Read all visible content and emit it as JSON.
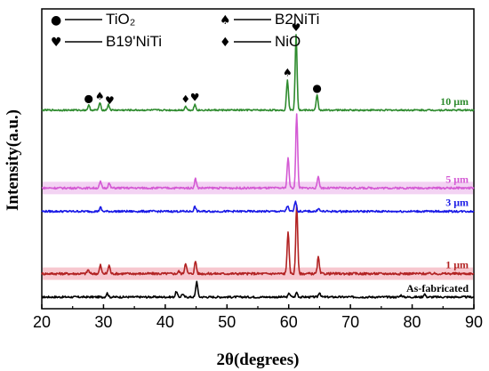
{
  "chart_data": {
    "type": "line",
    "xlabel": "2θ(degrees)",
    "ylabel": "Intensity(a.u.)",
    "xlim": [
      20,
      90
    ],
    "xticks": [
      20,
      30,
      40,
      50,
      60,
      70,
      80,
      90
    ],
    "y_ticks_shown": false,
    "grid": false,
    "legend": {
      "placement": "top-left",
      "entries": [
        {
          "marker": "●",
          "label": "TiO₂"
        },
        {
          "marker": "♠",
          "label": "B2NiTi"
        },
        {
          "marker": "♥",
          "label": "B19'NiTi"
        },
        {
          "marker": "♦",
          "label": "NiO"
        }
      ]
    },
    "series": [
      {
        "name": "As-fabricated",
        "color": "#000000",
        "baseline": 0.0,
        "noise": 0.25,
        "peaks": [
          [
            30.6,
            0.5
          ],
          [
            41.8,
            0.7
          ],
          [
            42.8,
            0.4
          ],
          [
            45.1,
            2.0
          ],
          [
            60.1,
            0.5
          ],
          [
            61.3,
            0.6
          ],
          [
            65.0,
            0.6
          ],
          [
            78.2,
            0.25
          ],
          [
            82.0,
            0.4
          ]
        ]
      },
      {
        "name": "1 μm",
        "color": "#b22222",
        "baseline": 3.0,
        "noise": 0.3,
        "band": "#f7c8cf",
        "peaks": [
          [
            27.5,
            0.5
          ],
          [
            29.5,
            1.1
          ],
          [
            30.9,
            1.1
          ],
          [
            42.2,
            0.3
          ],
          [
            43.3,
            1.4
          ],
          [
            44.9,
            1.6
          ],
          [
            59.9,
            5.4
          ],
          [
            61.3,
            8.9
          ],
          [
            64.8,
            2.1
          ]
        ]
      },
      {
        "name": "3 μm",
        "color": "#1a1ae6",
        "baseline": 11.0,
        "noise": 0.25,
        "peaks": [
          [
            29.5,
            0.5
          ],
          [
            44.8,
            0.6
          ],
          [
            59.8,
            0.7
          ],
          [
            61.1,
            1.4
          ],
          [
            64.8,
            0.4
          ]
        ]
      },
      {
        "name": "5 μm",
        "color": "#d45ad4",
        "baseline": 14.0,
        "noise": 0.25,
        "band": "#f3d3f3",
        "peaks": [
          [
            29.5,
            0.8
          ],
          [
            30.9,
            0.6
          ],
          [
            44.9,
            1.2
          ],
          [
            59.9,
            3.9
          ],
          [
            61.3,
            9.5
          ],
          [
            64.8,
            1.5
          ]
        ]
      },
      {
        "name": "10 μm",
        "color": "#2e8b2e",
        "baseline": 24.0,
        "noise": 0.2,
        "peaks": [
          [
            27.6,
            0.6
          ],
          [
            29.4,
            0.9
          ],
          [
            30.8,
            0.7
          ],
          [
            43.3,
            0.5
          ],
          [
            44.8,
            0.7
          ],
          [
            59.8,
            3.9
          ],
          [
            61.2,
            9.7
          ],
          [
            64.6,
            1.9
          ]
        ]
      }
    ],
    "markers": [
      {
        "x": 27.6,
        "symbol": "●"
      },
      {
        "x": 29.4,
        "symbol": "♠"
      },
      {
        "x": 31.0,
        "symbol": "♥"
      },
      {
        "x": 43.3,
        "symbol": "♦"
      },
      {
        "x": 44.8,
        "symbol": "♥"
      },
      {
        "x": 59.8,
        "symbol": "♠"
      },
      {
        "x": 61.2,
        "symbol": "♥"
      },
      {
        "x": 64.6,
        "symbol": "●"
      }
    ]
  }
}
